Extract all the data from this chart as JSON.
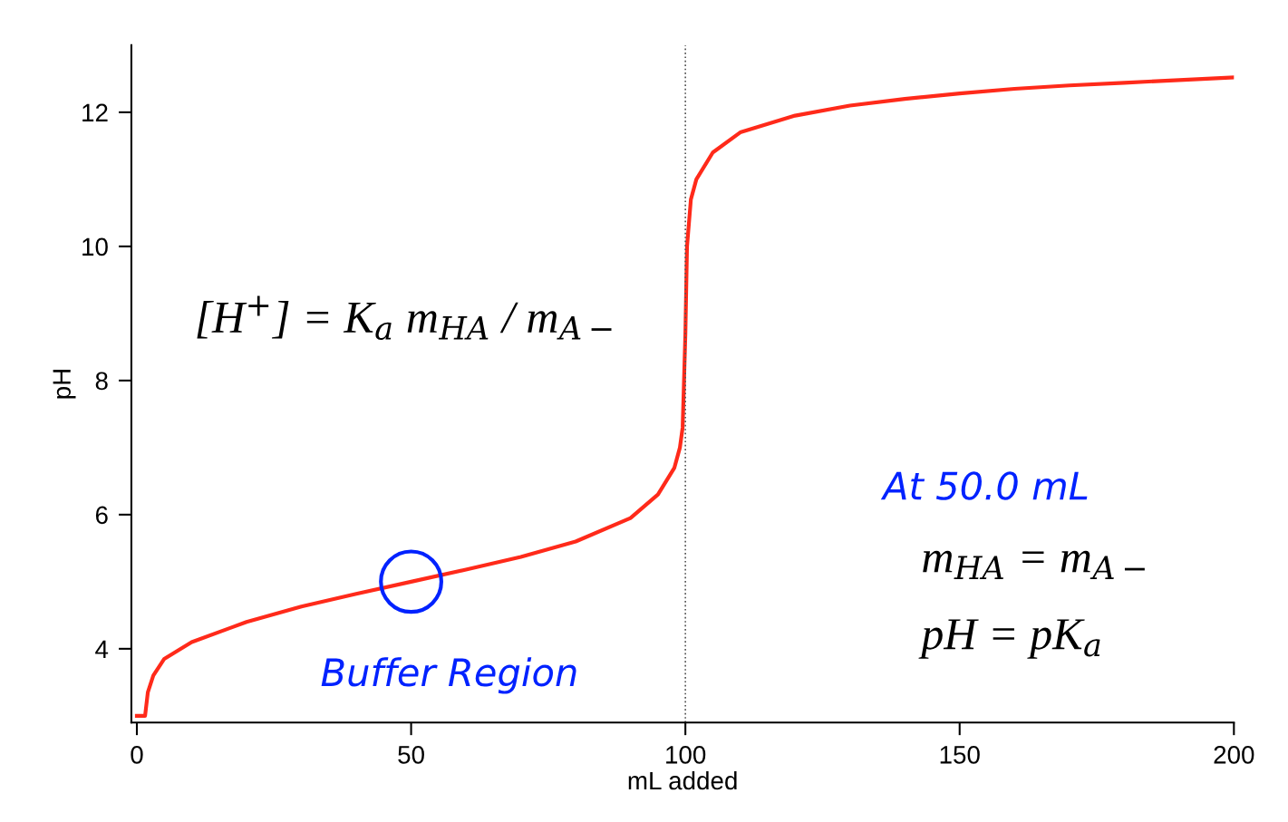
{
  "chart_data": {
    "type": "line",
    "xlabel": "mL added",
    "ylabel": "pH",
    "x": [
      0,
      1.5,
      2,
      3,
      5,
      10,
      20,
      30,
      40,
      50,
      60,
      70,
      80,
      90,
      95,
      98,
      99,
      99.5,
      100,
      100.3,
      101,
      102,
      105,
      110,
      120,
      130,
      140,
      150,
      160,
      170,
      180,
      190,
      200
    ],
    "series": [
      {
        "color": "#ff2a1a",
        "values": [
          3.0,
          3.0,
          3.35,
          3.6,
          3.85,
          4.1,
          4.4,
          4.63,
          4.82,
          5.0,
          5.18,
          5.37,
          5.6,
          5.95,
          6.3,
          6.7,
          7.0,
          7.3,
          8.7,
          10.0,
          10.7,
          11.0,
          11.4,
          11.7,
          11.95,
          12.1,
          12.2,
          12.28,
          12.35,
          12.4,
          12.44,
          12.48,
          12.52
        ]
      }
    ],
    "xlim": [
      -1,
      200
    ],
    "ylim": [
      2.9,
      13
    ],
    "xticks": [
      0,
      50,
      100,
      150,
      200
    ],
    "yticks": [
      4,
      6,
      8,
      10,
      12
    ],
    "grid": false,
    "marker": "none",
    "line_style": "solid",
    "ref_lines": [
      {
        "axis": "x",
        "value": 100,
        "color": "#555555",
        "line_style": "dotted"
      }
    ],
    "annotations": [
      "[H$^{+}$] = K$_{a}$ m$_{HA}$ / m$_{A−}$",
      {
        "text": "Buffer Region",
        "x": 50,
        "y": 5
      },
      "At 50.0 mL",
      "m$_{HA}$ = m$_{A−}$",
      "pH = pK$_{a}$"
    ]
  }
}
